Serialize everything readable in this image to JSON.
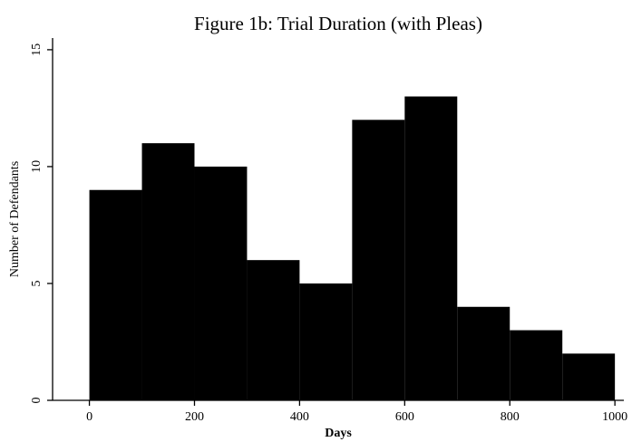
{
  "chart_data": {
    "type": "histogram",
    "title": "Figure 1b: Trial Duration (with Pleas)",
    "x_label": "Days",
    "y_label": "Number of Defendants",
    "bins": [
      0,
      100,
      200,
      300,
      400,
      500,
      600,
      700,
      800,
      900,
      1000
    ],
    "values": [
      9,
      11,
      10,
      6,
      5,
      12,
      13,
      4,
      3,
      2
    ],
    "color": "#000000",
    "xlim": [
      -70,
      1017
    ],
    "xticks": [
      0,
      200,
      400,
      600,
      800,
      1000
    ],
    "ylim": [
      0,
      15.5
    ],
    "yticks": [
      0,
      5,
      10,
      15
    ]
  }
}
